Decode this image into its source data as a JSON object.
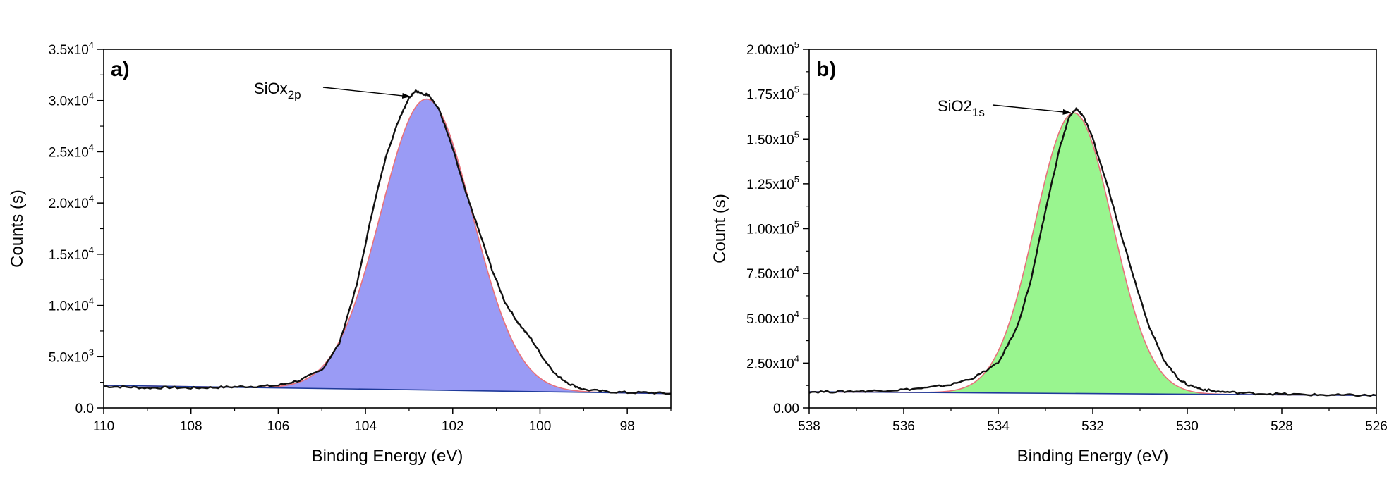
{
  "chart_data": [
    {
      "type": "area",
      "panel_label": "a)",
      "xlabel": "Binding Energy (eV)",
      "ylabel": "Counts (s)",
      "xlim": [
        110,
        97
      ],
      "ylim": [
        0,
        35000
      ],
      "x_ticks": [
        110,
        108,
        106,
        104,
        102,
        100,
        98
      ],
      "y_ticks": [
        {
          "value": 0,
          "mantissa": "0.0",
          "exp": ""
        },
        {
          "value": 5000,
          "mantissa": "5.0x10",
          "exp": "3"
        },
        {
          "value": 10000,
          "mantissa": "1.0x10",
          "exp": "4"
        },
        {
          "value": 15000,
          "mantissa": "1.5x10",
          "exp": "4"
        },
        {
          "value": 20000,
          "mantissa": "2.0x10",
          "exp": "4"
        },
        {
          "value": 25000,
          "mantissa": "2.5x10",
          "exp": "4"
        },
        {
          "value": 30000,
          "mantissa": "3.0x10",
          "exp": "4"
        },
        {
          "value": 35000,
          "mantissa": "3.5x10",
          "exp": "4"
        }
      ],
      "fill_color": "#9a9bf5",
      "envelope_color": "#e8707a",
      "raw_color": "#111111",
      "baseline_color": "#1f3a9a",
      "annotation": {
        "text": "SiOx",
        "subscript": "2p",
        "target_x": 102.85,
        "target_y": 30800
      },
      "baseline": {
        "x": [
          110,
          97
        ],
        "y": [
          2200,
          1400
        ]
      },
      "peak_fit": {
        "center": 102.6,
        "sigma": 1.05,
        "amplitude": 28400
      },
      "raw": {
        "x": [
          110,
          109.5,
          109,
          108.5,
          108,
          107.5,
          107,
          106.5,
          106,
          105.5,
          105,
          104.6,
          104.2,
          103.8,
          103.5,
          103.2,
          103,
          102.85,
          102.7,
          102.55,
          102.3,
          102.0,
          101.7,
          101.4,
          101.1,
          100.8,
          100.5,
          100.2,
          99.9,
          99.6,
          99.3,
          99,
          98.5,
          98,
          97.5,
          97
        ],
        "y": [
          2100,
          2050,
          1950,
          2000,
          1950,
          2000,
          2050,
          2100,
          2200,
          2700,
          3700,
          6300,
          12000,
          20000,
          25000,
          28500,
          30300,
          31000,
          30600,
          30600,
          29000,
          25300,
          21000,
          17300,
          13500,
          10300,
          8300,
          6700,
          4700,
          3100,
          2300,
          1800,
          1600,
          1500,
          1500,
          1400
        ]
      }
    },
    {
      "type": "area",
      "panel_label": "b)",
      "xlabel": "Binding Energy (eV)",
      "ylabel": "Count (s)",
      "xlim": [
        538,
        526
      ],
      "ylim": [
        0,
        200000
      ],
      "x_ticks": [
        538,
        536,
        534,
        532,
        530,
        528,
        526
      ],
      "y_ticks": [
        {
          "value": 0,
          "mantissa": "0.00",
          "exp": ""
        },
        {
          "value": 25000,
          "mantissa": "2.50x10",
          "exp": "4"
        },
        {
          "value": 50000,
          "mantissa": "5.00x10",
          "exp": "4"
        },
        {
          "value": 75000,
          "mantissa": "7.50x10",
          "exp": "4"
        },
        {
          "value": 100000,
          "mantissa": "1.00x10",
          "exp": "5"
        },
        {
          "value": 125000,
          "mantissa": "1.25x10",
          "exp": "5"
        },
        {
          "value": 150000,
          "mantissa": "1.50x10",
          "exp": "5"
        },
        {
          "value": 175000,
          "mantissa": "1.75x10",
          "exp": "5"
        },
        {
          "value": 200000,
          "mantissa": "2.00x10",
          "exp": "5"
        }
      ],
      "fill_color": "#99f58f",
      "envelope_color": "#e8707a",
      "raw_color": "#111111",
      "baseline_color": "#1f3a9a",
      "annotation": {
        "text": "SiO2",
        "subscript": "1s",
        "target_x": 532.35,
        "target_y": 167000
      },
      "baseline": {
        "x": [
          538,
          526
        ],
        "y": [
          9000,
          7000
        ]
      },
      "peak_fit": {
        "center": 532.4,
        "sigma": 0.82,
        "amplitude": 156500
      },
      "raw": {
        "x": [
          538,
          537.5,
          537,
          536.5,
          536,
          535.5,
          535,
          534.5,
          534,
          533.6,
          533.3,
          533.0,
          532.7,
          532.5,
          532.35,
          532.2,
          532.0,
          531.7,
          531.4,
          531.1,
          530.8,
          530.5,
          530.2,
          530.0,
          529.7,
          529.4,
          529,
          528.5,
          528,
          527.5,
          527,
          526.5,
          526
        ],
        "y": [
          9000,
          9100,
          9300,
          9600,
          10200,
          11200,
          13000,
          17000,
          25000,
          45000,
          72000,
          110000,
          145000,
          162000,
          167000,
          163000,
          150000,
          125000,
          97000,
          70000,
          45000,
          27000,
          16500,
          13000,
          10500,
          9200,
          8600,
          8000,
          7700,
          7400,
          7200,
          7100,
          7000
        ]
      }
    }
  ]
}
